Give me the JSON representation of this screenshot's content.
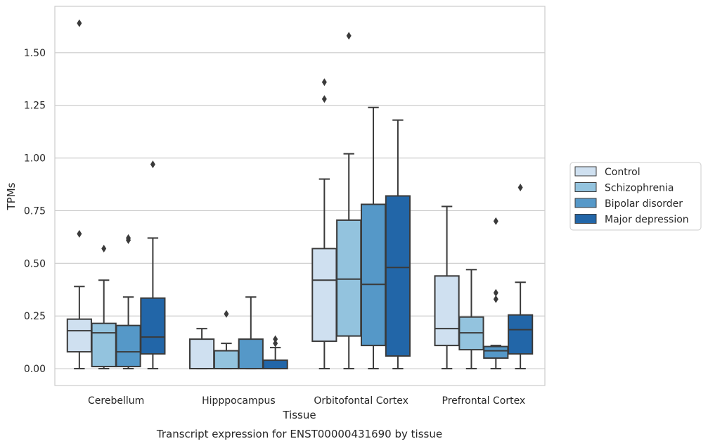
{
  "chart_data": {
    "type": "box",
    "xlabel": "Tissue",
    "ylabel": "TPMs",
    "caption": "Transcript expression for ENST00000431690 by tissue",
    "ylim": [
      -0.08,
      1.72
    ],
    "yticks": [
      0.0,
      0.25,
      0.5,
      0.75,
      1.0,
      1.25,
      1.5
    ],
    "ytick_labels": [
      "0.00",
      "0.25",
      "0.50",
      "0.75",
      "1.00",
      "1.25",
      "1.50"
    ],
    "grid": "horizontal",
    "legend_position": "right",
    "categories": [
      "Cerebellum",
      "Hipppocampus",
      "Orbitofontal Cortex",
      "Prefrontal Cortex"
    ],
    "series": [
      {
        "name": "Control",
        "color": "#cfe0f0",
        "boxes": [
          {
            "whislo": 0.0,
            "q1": 0.08,
            "med": 0.18,
            "q3": 0.235,
            "whishi": 0.39,
            "fliers": [
              0.64,
              1.64
            ]
          },
          {
            "whislo": 0.0,
            "q1": 0.0,
            "med": 0.0,
            "q3": 0.14,
            "whishi": 0.19,
            "fliers": []
          },
          {
            "whislo": 0.0,
            "q1": 0.13,
            "med": 0.42,
            "q3": 0.57,
            "whishi": 0.9,
            "fliers": [
              1.28,
              1.36
            ]
          },
          {
            "whislo": 0.0,
            "q1": 0.11,
            "med": 0.19,
            "q3": 0.44,
            "whishi": 0.77,
            "fliers": []
          }
        ]
      },
      {
        "name": "Schizophrenia",
        "color": "#93c3de",
        "boxes": [
          {
            "whislo": 0.0,
            "q1": 0.01,
            "med": 0.17,
            "q3": 0.215,
            "whishi": 0.42,
            "fliers": [
              0.57
            ]
          },
          {
            "whislo": 0.0,
            "q1": 0.0,
            "med": 0.0,
            "q3": 0.085,
            "whishi": 0.12,
            "fliers": [
              0.26
            ]
          },
          {
            "whislo": 0.0,
            "q1": 0.155,
            "med": 0.425,
            "q3": 0.705,
            "whishi": 1.02,
            "fliers": [
              1.58
            ]
          },
          {
            "whislo": 0.0,
            "q1": 0.09,
            "med": 0.17,
            "q3": 0.245,
            "whishi": 0.47,
            "fliers": []
          }
        ]
      },
      {
        "name": "Bipolar disorder",
        "color": "#5598c8",
        "boxes": [
          {
            "whislo": 0.0,
            "q1": 0.01,
            "med": 0.08,
            "q3": 0.205,
            "whishi": 0.34,
            "fliers": [
              0.61,
              0.62
            ]
          },
          {
            "whislo": 0.0,
            "q1": 0.0,
            "med": 0.0,
            "q3": 0.14,
            "whishi": 0.34,
            "fliers": []
          },
          {
            "whislo": 0.0,
            "q1": 0.11,
            "med": 0.4,
            "q3": 0.78,
            "whishi": 1.24,
            "fliers": []
          },
          {
            "whislo": 0.0,
            "q1": 0.05,
            "med": 0.085,
            "q3": 0.105,
            "whishi": 0.11,
            "fliers": [
              0.33,
              0.36,
              0.7
            ]
          }
        ]
      },
      {
        "name": "Major depression",
        "color": "#2266a8",
        "boxes": [
          {
            "whislo": 0.0,
            "q1": 0.07,
            "med": 0.15,
            "q3": 0.335,
            "whishi": 0.62,
            "fliers": [
              0.97
            ]
          },
          {
            "whislo": 0.0,
            "q1": 0.0,
            "med": 0.0,
            "q3": 0.04,
            "whishi": 0.1,
            "fliers": [
              0.12,
              0.14
            ]
          },
          {
            "whislo": 0.0,
            "q1": 0.06,
            "med": 0.48,
            "q3": 0.82,
            "whishi": 1.18,
            "fliers": []
          },
          {
            "whislo": 0.0,
            "q1": 0.07,
            "med": 0.185,
            "q3": 0.255,
            "whishi": 0.41,
            "fliers": [
              0.86
            ]
          }
        ]
      }
    ]
  }
}
